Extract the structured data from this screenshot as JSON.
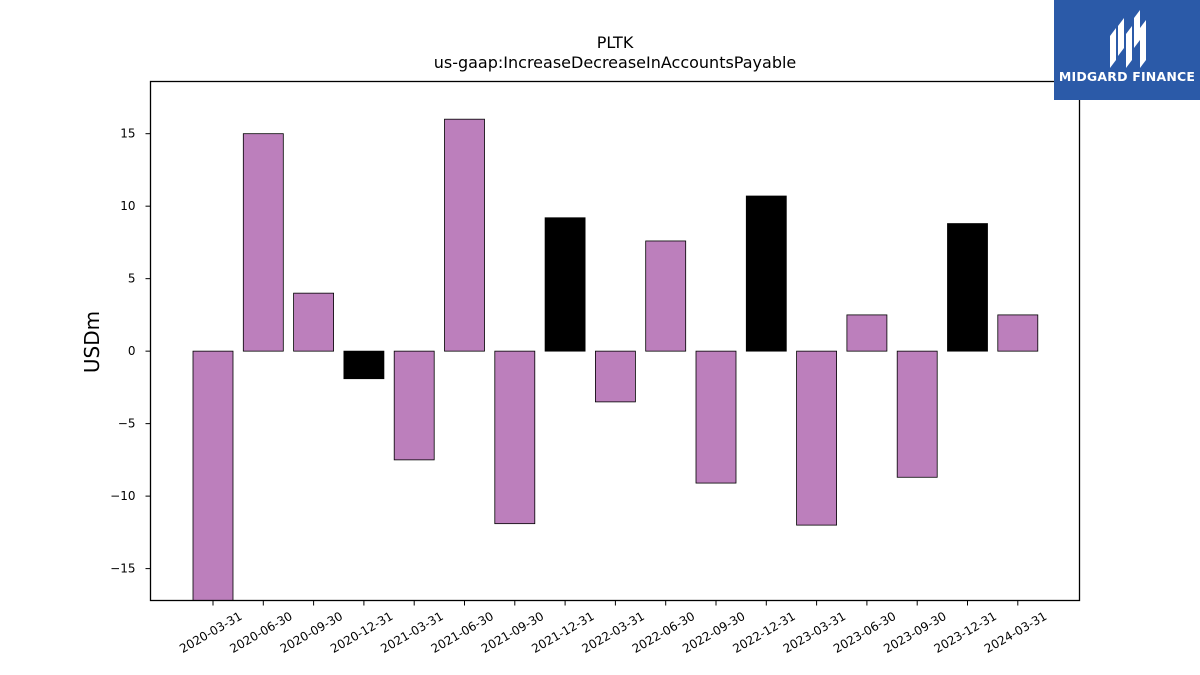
{
  "chart_data": {
    "type": "bar",
    "title": "PLTK",
    "subtitle": "us-gaap:IncreaseDecreaseInAccountsPayable",
    "xlabel": "",
    "ylabel": "USDm",
    "ylim": [
      -17.2,
      18.6
    ],
    "yticks": [
      -15,
      -10,
      -5,
      0,
      5,
      10,
      15
    ],
    "ytick_labels": [
      "−15",
      "−10",
      "−5",
      "0",
      "5",
      "10",
      "15"
    ],
    "grid": false,
    "categories": [
      "2020-03-31",
      "2020-06-30",
      "2020-09-30",
      "2020-12-31",
      "2021-03-31",
      "2021-06-30",
      "2021-09-30",
      "2021-12-31",
      "2022-03-31",
      "2022-06-30",
      "2022-09-30",
      "2022-12-31",
      "2023-03-31",
      "2023-06-30",
      "2023-09-30",
      "2023-12-31",
      "2024-03-31"
    ],
    "values": [
      -17.2,
      15.0,
      4.0,
      -1.9,
      -7.5,
      16.0,
      -11.9,
      9.2,
      -3.5,
      7.6,
      -9.1,
      10.7,
      -12.0,
      2.5,
      -8.7,
      8.8,
      2.5
    ],
    "bar_colors": [
      "#bc7fbc",
      "#bc7fbc",
      "#bc7fbc",
      "#000000",
      "#bc7fbc",
      "#bc7fbc",
      "#bc7fbc",
      "#000000",
      "#bc7fbc",
      "#bc7fbc",
      "#bc7fbc",
      "#000000",
      "#bc7fbc",
      "#bc7fbc",
      "#bc7fbc",
      "#000000",
      "#bc7fbc"
    ]
  },
  "logo": {
    "text": "MIDGARD FINANCE",
    "background": "#2b5aa8"
  }
}
